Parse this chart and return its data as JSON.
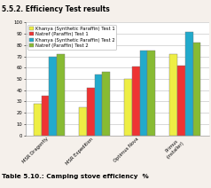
{
  "title": "5.5.2. Efficiency Test results",
  "caption": "Table 5.10.: Camping stove efficiency  %",
  "categories": [
    "MSR Dragonfly",
    "MSR Expedition",
    "Optimus Nova",
    "Primus\n(Installer)"
  ],
  "series": [
    {
      "label": "Khanya (Synthetic Paraffin) Test 1",
      "color": "#EEEE44",
      "values": [
        28,
        25,
        50,
        72
      ]
    },
    {
      "label": "Natref (Paraffin) Test 1",
      "color": "#EE3333",
      "values": [
        35,
        42,
        61,
        62
      ]
    },
    {
      "label": "Khanya (Synthetic Paraffin) Test 2",
      "color": "#22AACC",
      "values": [
        70,
        54,
        75,
        92
      ]
    },
    {
      "label": "Natref (Paraffin) Test 2",
      "color": "#88BB33",
      "values": [
        72,
        56,
        75,
        82
      ]
    }
  ],
  "ylim": [
    0,
    100
  ],
  "yticks": [
    0,
    10,
    20,
    30,
    40,
    50,
    60,
    70,
    80,
    90,
    100
  ],
  "background_color": "#f5f0eb",
  "plot_bg_color": "#ffffff",
  "grid_color": "#bbbbbb",
  "title_fontsize": 5.5,
  "legend_fontsize": 3.8,
  "tick_fontsize": 3.8,
  "caption_fontsize": 5.2,
  "bar_width": 0.17
}
